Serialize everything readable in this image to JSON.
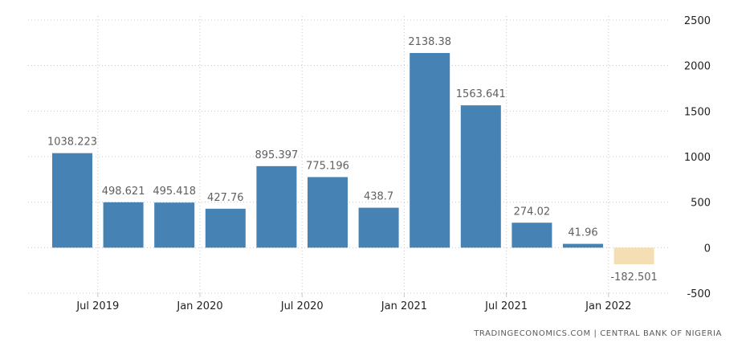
{
  "chart_data": {
    "type": "bar",
    "categories": [
      "Q2 2019",
      "Q3 2019",
      "Q4 2019",
      "Q1 2020",
      "Q2 2020",
      "Q3 2020",
      "Q4 2020",
      "Q1 2021",
      "Q2 2021",
      "Q3 2021",
      "Q4 2021",
      "Q1 2022"
    ],
    "values": [
      1038.223,
      498.621,
      495.418,
      427.76,
      895.397,
      775.196,
      438.7,
      2138.38,
      1563.641,
      274.02,
      41.96,
      -182.501
    ],
    "data_labels": [
      "1038.223",
      "498.621",
      "495.418",
      "427.76",
      "895.397",
      "775.196",
      "438.7",
      "2138.38",
      "1563.641",
      "274.02",
      "41.96",
      "-182.501"
    ],
    "x_ticks": [
      "Jul 2019",
      "Jan 2020",
      "Jul 2020",
      "Jan 2021",
      "Jul 2021",
      "Jan 2022"
    ],
    "y_ticks": [
      2500,
      2000,
      1500,
      1000,
      500,
      0,
      -500
    ],
    "ylim": [
      -500,
      2500
    ],
    "colors": {
      "positive": "#4682b4",
      "negative": "#f5deb3"
    },
    "grid": true,
    "title": "",
    "xlabel": "",
    "ylabel": ""
  },
  "source": "TRADINGECONOMICS.COM | CENTRAL BANK OF NIGERIA"
}
